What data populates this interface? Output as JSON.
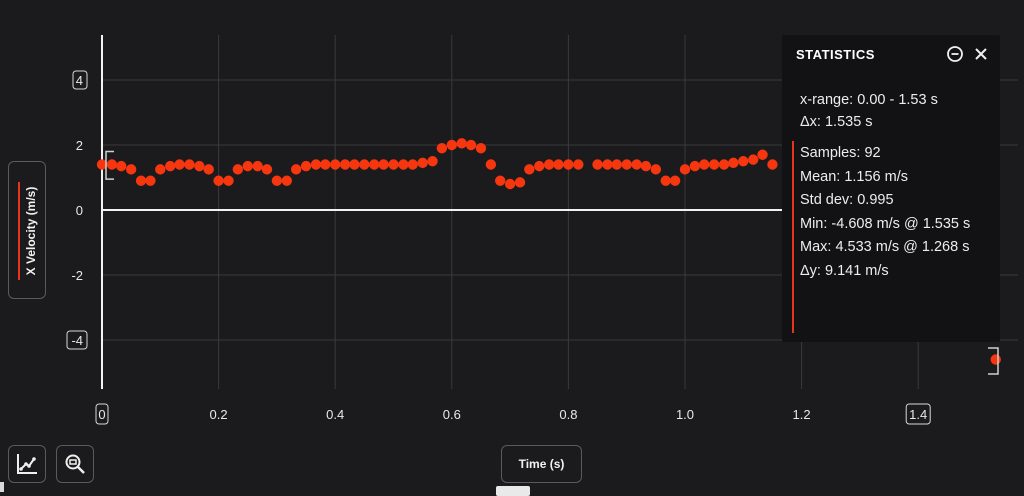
{
  "chart_data": {
    "type": "scatter",
    "xlabel": "Time (s)",
    "ylabel": "X Velocity (m/s)",
    "xlim": [
      0,
      1.53
    ],
    "ylim": [
      -5.2,
      5.2
    ],
    "x_ticks": [
      "0",
      "0.2",
      "0.4",
      "0.6",
      "0.8",
      "1.0",
      "1.2",
      "1.4"
    ],
    "y_ticks": [
      "4",
      "2",
      "0",
      "-2",
      "-4"
    ],
    "grid": true,
    "series": [
      {
        "color": "#f5360f",
        "x": [
          0.0,
          0.017,
          0.033,
          0.05,
          0.067,
          0.083,
          0.1,
          0.117,
          0.133,
          0.15,
          0.167,
          0.183,
          0.2,
          0.217,
          0.233,
          0.25,
          0.267,
          0.283,
          0.3,
          0.317,
          0.333,
          0.35,
          0.367,
          0.383,
          0.4,
          0.417,
          0.433,
          0.45,
          0.467,
          0.483,
          0.5,
          0.517,
          0.533,
          0.55,
          0.567,
          0.583,
          0.6,
          0.617,
          0.633,
          0.65,
          0.667,
          0.683,
          0.7,
          0.717,
          0.733,
          0.75,
          0.767,
          0.783,
          0.8,
          0.817,
          0.85,
          0.867,
          0.883,
          0.9,
          0.917,
          0.933,
          0.95,
          0.967,
          0.983,
          1.0,
          1.017,
          1.033,
          1.05,
          1.067,
          1.083,
          1.1,
          1.117,
          1.133,
          1.15,
          1.533
        ],
        "y": [
          1.4,
          1.4,
          1.35,
          1.25,
          0.9,
          0.9,
          1.25,
          1.35,
          1.4,
          1.4,
          1.35,
          1.25,
          0.9,
          0.9,
          1.25,
          1.35,
          1.35,
          1.25,
          0.9,
          0.9,
          1.25,
          1.35,
          1.4,
          1.4,
          1.4,
          1.4,
          1.4,
          1.4,
          1.4,
          1.4,
          1.4,
          1.4,
          1.4,
          1.45,
          1.5,
          1.9,
          2.0,
          2.05,
          2.0,
          1.9,
          1.4,
          0.9,
          0.8,
          0.85,
          1.25,
          1.35,
          1.4,
          1.4,
          1.4,
          1.4,
          1.4,
          1.4,
          1.4,
          1.4,
          1.4,
          1.35,
          1.25,
          0.9,
          0.9,
          1.25,
          1.35,
          1.4,
          1.4,
          1.4,
          1.45,
          1.5,
          1.55,
          1.7,
          1.4,
          -4.6
        ]
      }
    ]
  },
  "stats": {
    "title": "STATISTICS",
    "x_range": "x-range: 0.00 - 1.53 s",
    "dx": "Δx: 1.535 s",
    "samples": "Samples: 92",
    "mean": "Mean: 1.156 m/s",
    "std": "Std dev: 0.995",
    "min": "Min: -4.608 m/s @ 1.535 s",
    "max": "Max: 4.533 m/s @ 1.268 s",
    "dy": "Δy: 9.141 m/s"
  },
  "toolbar": {
    "autoscale_icon": "chart-line-icon",
    "zoom_icon": "zoom-icon",
    "collapse_icon": "minus-circle-icon",
    "close_icon": "close-icon"
  }
}
